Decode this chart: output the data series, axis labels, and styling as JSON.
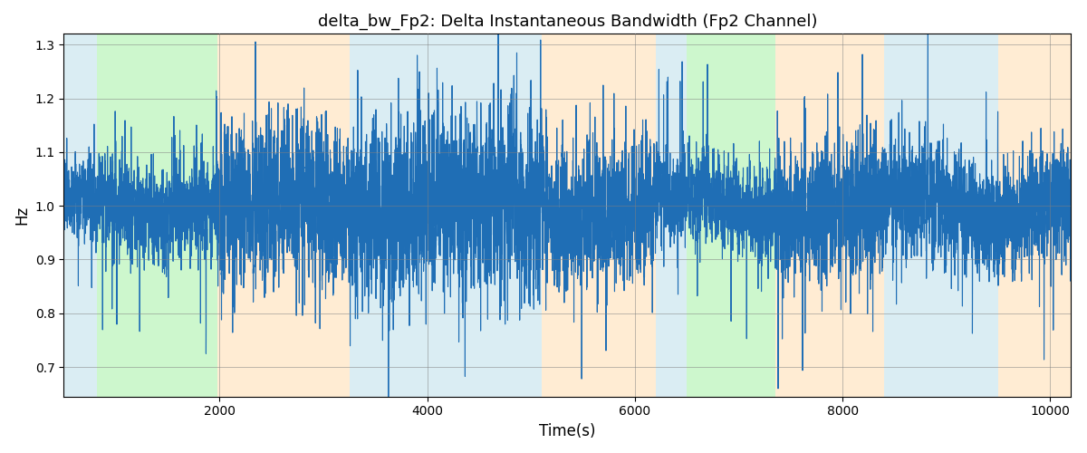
{
  "title": "delta_bw_Fp2: Delta Instantaneous Bandwidth (Fp2 Channel)",
  "xlabel": "Time(s)",
  "ylabel": "Hz",
  "xlim": [
    500,
    10200
  ],
  "ylim": [
    0.645,
    1.32
  ],
  "yticks": [
    0.7,
    0.8,
    0.9,
    1.0,
    1.1,
    1.2,
    1.3
  ],
  "xticks": [
    2000,
    4000,
    6000,
    8000,
    10000
  ],
  "line_color": "#1f6eb5",
  "line_width": 0.8,
  "bg_regions": [
    {
      "xmin": 500,
      "xmax": 820,
      "color": "#add8e6",
      "alpha": 0.45
    },
    {
      "xmin": 820,
      "xmax": 1980,
      "color": "#90ee90",
      "alpha": 0.45
    },
    {
      "xmin": 1980,
      "xmax": 3250,
      "color": "#ffd59e",
      "alpha": 0.45
    },
    {
      "xmin": 3250,
      "xmax": 5100,
      "color": "#add8e6",
      "alpha": 0.45
    },
    {
      "xmin": 5100,
      "xmax": 6200,
      "color": "#ffd59e",
      "alpha": 0.45
    },
    {
      "xmin": 6200,
      "xmax": 6500,
      "color": "#add8e6",
      "alpha": 0.45
    },
    {
      "xmin": 6500,
      "xmax": 7350,
      "color": "#90ee90",
      "alpha": 0.45
    },
    {
      "xmin": 7350,
      "xmax": 8400,
      "color": "#ffd59e",
      "alpha": 0.45
    },
    {
      "xmin": 8400,
      "xmax": 9500,
      "color": "#add8e6",
      "alpha": 0.45
    },
    {
      "xmin": 9500,
      "xmax": 10200,
      "color": "#ffd59e",
      "alpha": 0.45
    }
  ],
  "figsize": [
    12.0,
    5.0
  ],
  "dpi": 100
}
